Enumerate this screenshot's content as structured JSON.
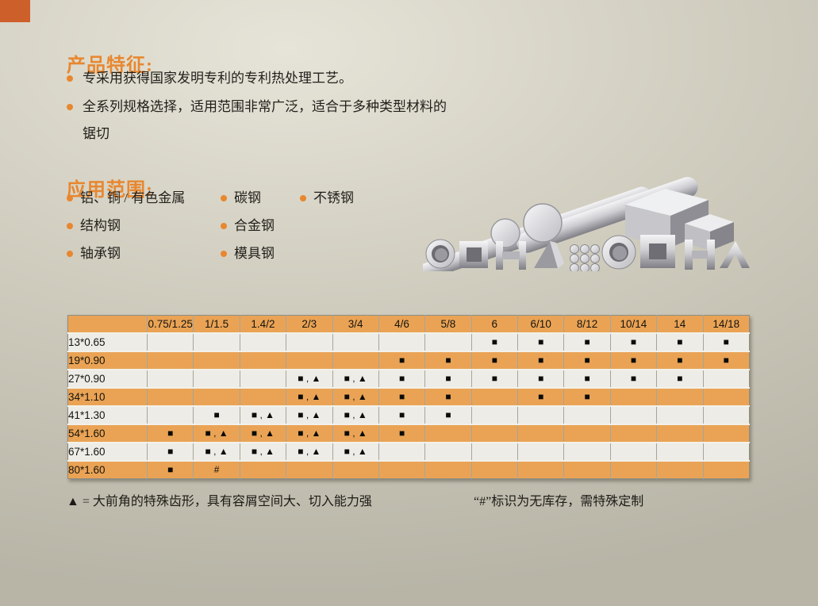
{
  "page": {
    "accent_color": "#e8872f",
    "corner_color": "#cd5f2b",
    "table_header_bg": "#eaa355",
    "table_row_light": "#edece7",
    "table_row_orange": "#eaa355"
  },
  "features": {
    "title": "产品特征:",
    "bullets": [
      {
        "text": "专采用获得国家发明专利的专利热处理工艺。"
      },
      {
        "text": "全系列规格选择，适用范围非常广泛，适合于多种类型材料的锯切"
      }
    ]
  },
  "applications": {
    "title": "应用范围:",
    "columns": [
      {
        "items": [
          "铝、铜 / 有色金属",
          "结构钢",
          "轴承钢"
        ]
      },
      {
        "items": [
          "碳钢",
          "合金钢",
          "模具钢"
        ]
      },
      {
        "items": [
          "不锈钢"
        ]
      }
    ]
  },
  "spec_table": {
    "corner_label": "",
    "columns": [
      "0.75/1.25",
      "1/1.5",
      "1.4/2",
      "2/3",
      "3/4",
      "4/6",
      "5/8",
      "6",
      "6/10",
      "8/12",
      "10/14",
      "14",
      "14/18"
    ],
    "rows": [
      {
        "label": "13*0.65",
        "cells": [
          "",
          "",
          "",
          "",
          "",
          "",
          "",
          "■",
          "■",
          "■",
          "■",
          "■",
          "■"
        ]
      },
      {
        "label": "19*0.90",
        "cells": [
          "",
          "",
          "",
          "",
          "",
          "■",
          "■",
          "■",
          "■",
          "■",
          "■",
          "■",
          "■"
        ]
      },
      {
        "label": "27*0.90",
        "cells": [
          "",
          "",
          "",
          "■ , ▲",
          "■ , ▲",
          "■",
          "■",
          "■",
          "■",
          "■",
          "■",
          "■",
          ""
        ]
      },
      {
        "label": "34*1.10",
        "cells": [
          "",
          "",
          "",
          "■ , ▲",
          "■ , ▲",
          "■",
          "■",
          "",
          "■",
          "■",
          "",
          "",
          ""
        ]
      },
      {
        "label": "41*1.30",
        "cells": [
          "",
          "■",
          "■ , ▲",
          "■ , ▲",
          "■ , ▲",
          "■",
          "■",
          "",
          "",
          "",
          "",
          "",
          ""
        ]
      },
      {
        "label": "54*1.60",
        "cells": [
          "■",
          "■ , ▲",
          "■ , ▲",
          "■ , ▲",
          "■ , ▲",
          "■",
          "",
          "",
          "",
          "",
          "",
          "",
          ""
        ]
      },
      {
        "label": "67*1.60",
        "cells": [
          "■",
          "■ , ▲",
          "■ , ▲",
          "■ , ▲",
          "■ , ▲",
          "",
          "",
          "",
          "",
          "",
          "",
          "",
          ""
        ]
      },
      {
        "label": "80*1.60",
        "cells": [
          "■",
          "#",
          "",
          "",
          "",
          "",
          "",
          "",
          "",
          "",
          "",
          "",
          ""
        ]
      }
    ]
  },
  "legend": {
    "triangle_note": "▲ = 大前角的特殊齿形，具有容屑空间大、切入能力强",
    "hash_note": "“#”标识为无库存，需特殊定制"
  }
}
